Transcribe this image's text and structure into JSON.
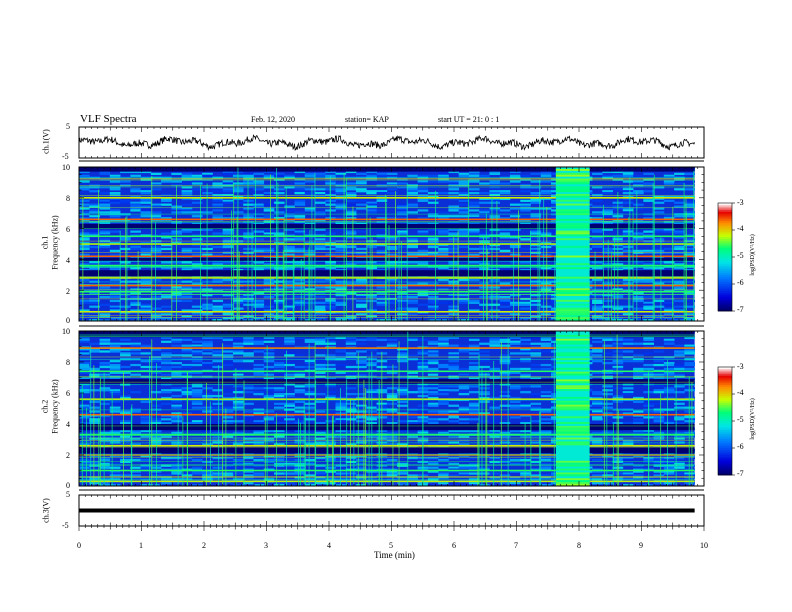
{
  "header": {
    "title": "VLF Spectra",
    "date": "Feb. 12, 2020",
    "station": "station= KAP",
    "start": "start  UT =   21: 0  : 1"
  },
  "chart_data": [
    {
      "type": "line",
      "name": "ch1-waveform",
      "ylabel": "ch.1(V)",
      "ylim": [
        -5,
        5
      ],
      "yticks": [
        "5",
        "-5"
      ],
      "x_range": [
        0,
        9.85
      ],
      "approx_level": 0,
      "approx_amplitude": 2
    },
    {
      "type": "heatmap",
      "name": "ch1-spectrogram",
      "ylabel": "ch.1\nFrequency  (kHz)",
      "ylabel_line1": "ch.1",
      "ylabel_line2": "Frequency  (kHz)",
      "ylim": [
        0,
        10
      ],
      "yticks": [
        "0",
        "2",
        "4",
        "6",
        "8",
        "10"
      ],
      "colorbar": {
        "label": "log(PSD)(V²/Hz)",
        "range": [
          -7,
          -3
        ],
        "ticks": [
          "-3",
          "-4",
          "-5",
          "-6",
          "-7"
        ]
      },
      "bright_lines_khz": [
        0.6,
        1.9,
        2.3,
        2.8,
        3.6,
        4.2,
        5.0,
        5.5,
        6.6,
        8.0
      ],
      "dark_bands_khz": [
        [
          2.9,
          3.3
        ],
        [
          3.9,
          4.1
        ],
        [
          6.0,
          6.3
        ],
        [
          9.7,
          10.0
        ]
      ],
      "burst_interval_min": [
        7.63,
        8.17
      ]
    },
    {
      "type": "heatmap",
      "name": "ch2-spectrogram",
      "ylabel_line1": "ch.2",
      "ylabel_line2": "Frequency  (kHz)",
      "ylim": [
        0,
        10
      ],
      "yticks": [
        "0",
        "2",
        "4",
        "6",
        "8",
        "10"
      ],
      "colorbar": {
        "label": "log(PSD)(V²/Hz)",
        "range": [
          -7,
          -3
        ],
        "ticks": [
          "-3",
          "-4",
          "-5",
          "-6",
          "-7"
        ]
      },
      "bright_lines_khz": [
        0.3,
        1.0,
        2.0,
        2.6,
        3.3,
        4.6,
        5.6,
        7.4,
        8.9
      ],
      "dark_bands_khz": [
        [
          2.1,
          2.5
        ],
        [
          3.6,
          4.0
        ],
        [
          6.6,
          6.9
        ],
        [
          9.6,
          10.0
        ]
      ],
      "burst_interval_min": [
        7.63,
        8.17
      ]
    },
    {
      "type": "line",
      "name": "ch3-waveform",
      "ylabel": "ch.3(V)",
      "ylim": [
        -5,
        5
      ],
      "yticks": [
        "5",
        "-5"
      ],
      "x_range": [
        0,
        9.85
      ],
      "level": 0
    }
  ],
  "xaxis": {
    "label": "Time  (min)",
    "range": [
      0,
      10
    ],
    "ticks": [
      "0",
      "1",
      "2",
      "3",
      "4",
      "5",
      "6",
      "7",
      "8",
      "9",
      "10"
    ]
  }
}
